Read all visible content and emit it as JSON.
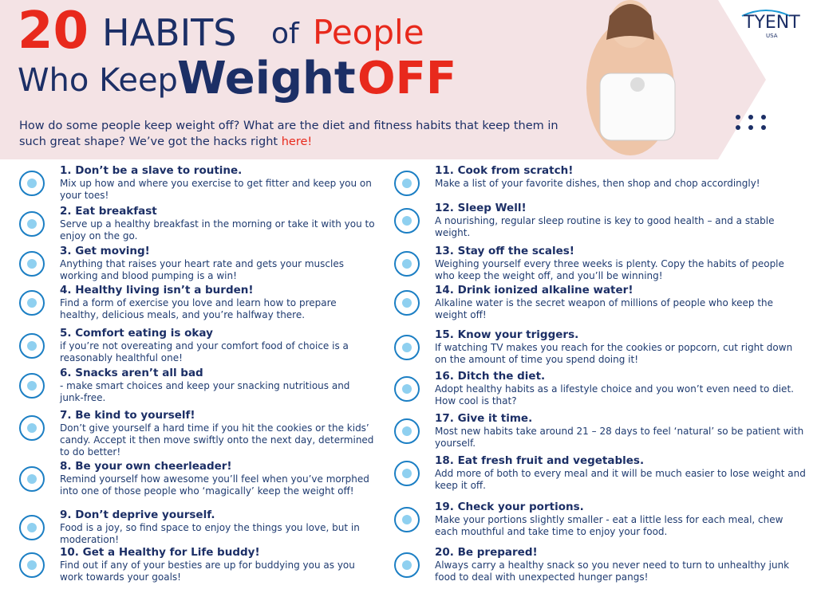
{
  "header": {
    "number": "20",
    "word": "HABITS",
    "of": "of",
    "people": "People",
    "line2": "Who Keep",
    "weight": "Weight",
    "off": "OFF"
  },
  "logo": {
    "brand": "TYENT",
    "sub": "USA"
  },
  "intro": {
    "text": "How do some people keep weight off? What are the diet and fitness habits that keep them in such great shape? We’ve got the hacks right ",
    "link": "here!"
  },
  "habits": [
    {
      "number": "1.",
      "title": "Don’t be a slave to routine.",
      "text": "Mix up how and where you exercise to get fitter and keep you on your toes!"
    },
    {
      "number": "2.",
      "title": "Eat breakfast",
      "text": "Serve up a healthy breakfast in the morning or take it with you to enjoy on the go."
    },
    {
      "number": "3.",
      "title": "Get moving!",
      "text": "Anything that raises your heart rate and gets your muscles working and blood pumping is a win!"
    },
    {
      "number": "4.",
      "title": "Healthy living isn’t a burden!",
      "text": "Find a form of exercise you love and learn how to prepare healthy, delicious meals, and you’re halfway there."
    },
    {
      "number": "5.",
      "title": "Comfort eating is okay",
      "text": "if you’re not overeating and your comfort food of choice is a reasonably healthful one!"
    },
    {
      "number": "6.",
      "title": "Snacks aren’t all bad",
      "text": "- make smart choices and keep your snacking nutritious and junk-free."
    },
    {
      "number": "7.",
      "title": "Be kind to yourself!",
      "text": "Don’t give yourself a hard time if you hit the cookies or the kids’ candy. Accept it then move swiftly onto the next day, determined to do better!"
    },
    {
      "number": "8.",
      "title": "Be your own cheerleader!",
      "text": "Remind yourself how awesome you’ll feel when you’ve morphed into one of those people who ‘magically’ keep the weight off!"
    },
    {
      "number": "9.",
      "title": "Don’t deprive yourself.",
      "text": "Food is a joy, so find space to enjoy the things you love, but in moderation!"
    },
    {
      "number": "10.",
      "title": "Get a Healthy for Life buddy!",
      "text": "Find out if any of your besties are up for buddying you as you work towards your goals!"
    },
    {
      "number": "11.",
      "title": "Cook from scratch!",
      "text": "Make a list of your favorite dishes, then shop and chop accordingly!"
    },
    {
      "number": "12.",
      "title": "Sleep Well!",
      "text": "A nourishing, regular sleep routine is key to good health – and a stable weight."
    },
    {
      "number": "13.",
      "title": "Stay off the scales!",
      "text": "Weighing yourself every three weeks is plenty. Copy the habits of people who keep the weight off, and you’ll be winning!"
    },
    {
      "number": "14.",
      "title": "Drink ionized alkaline water!",
      "text": "Alkaline water is the secret weapon of millions of people who keep the weight off!"
    },
    {
      "number": "15.",
      "title": "Know your triggers.",
      "text": "If watching TV makes you reach for the cookies or popcorn, cut right down on the amount of time you spend doing it!"
    },
    {
      "number": "16.",
      "title": "Ditch the diet.",
      "text": "Adopt healthy habits as a lifestyle choice and you won’t even need to diet. How cool is that?"
    },
    {
      "number": "17.",
      "title": "Give it time.",
      "text": "Most new habits take around 21 – 28 days to feel ‘natural’ so be patient with yourself."
    },
    {
      "number": "18.",
      "title": "Eat fresh fruit and vegetables.",
      "text": "Add more of both to every meal and it will be much easier to lose weight and keep it off."
    },
    {
      "number": "19.",
      "title": "Check your portions.",
      "text": "Make your portions slightly smaller - eat a little less for each meal, chew each mouthful and take time to enjoy your food."
    },
    {
      "number": "20.",
      "title": "Be prepared!",
      "text": "Always carry a healthy snack so you never need to turn to unhealthy junk food to deal with unexpected hunger pangs!"
    }
  ]
}
